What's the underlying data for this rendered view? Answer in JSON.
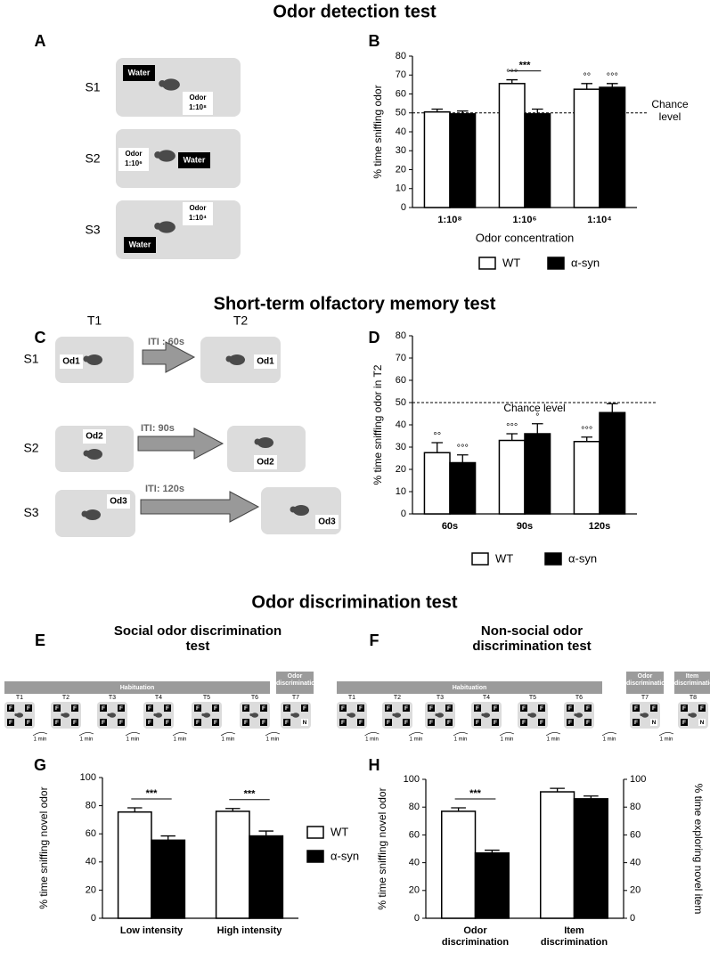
{
  "figure": {
    "sections": [
      "Odor detection test",
      "Short-term olfactory memory test",
      "Odor discrimination test"
    ],
    "panels": [
      "A",
      "B",
      "C",
      "D",
      "E",
      "F",
      "G",
      "H"
    ]
  },
  "diagram_a": {
    "water": "Water",
    "odor": "Odor",
    "sessions": [
      {
        "label": "S1",
        "dilution": "1:10⁸"
      },
      {
        "label": "S2",
        "dilution": "1:10⁶"
      },
      {
        "label": "S3",
        "dilution": "1:10⁴"
      }
    ]
  },
  "diagram_c": {
    "trials": [
      "T1",
      "T2"
    ],
    "sessions": [
      {
        "label": "S1",
        "iti": "ITI : 60s",
        "odor": "Od1"
      },
      {
        "label": "S2",
        "iti": "ITI: 90s",
        "odor": "Od2"
      },
      {
        "label": "S3",
        "iti": "ITI: 120s",
        "odor": "Od3"
      }
    ]
  },
  "diagram_e": {
    "title": "Social odor discrimination test",
    "phases": [
      "Habituation",
      "Odor discrimination"
    ],
    "trials": [
      "T1",
      "T2",
      "T3",
      "T4",
      "T5",
      "T6",
      "T7"
    ],
    "interval": "1 min",
    "familiar": "F",
    "novel": "N"
  },
  "diagram_f": {
    "title": "Non-social odor discrimination test",
    "phases": [
      "Habituation",
      "Odor discrimination",
      "Item discrimination"
    ],
    "trials": [
      "T1",
      "T2",
      "T3",
      "T4",
      "T5",
      "T6",
      "T7",
      "T8"
    ],
    "interval": "1 min",
    "familiar": "F",
    "novel": "N"
  },
  "chart_data": [
    {
      "type": "bar",
      "y_label": "% time sniffing odor",
      "x_label": "Odor concentration",
      "categories": [
        "1:10⁸",
        "1:10⁶",
        "1:10⁴"
      ],
      "edgecolor": "#000000",
      "series": [
        {
          "name": "WT",
          "color": "#ffffff",
          "values": [
            50.5,
            65.5,
            62.5
          ],
          "errors": [
            1.5,
            2,
            3
          ],
          "markers": [
            null,
            "°°°",
            "°°"
          ]
        },
        {
          "name": "α-syn",
          "color": "#000000",
          "values": [
            49.5,
            49.5,
            63.5
          ],
          "errors": [
            1.5,
            2.5,
            2
          ],
          "markers": [
            null,
            null,
            "°°°"
          ]
        }
      ],
      "significance": [
        null,
        "***",
        null
      ],
      "reference_line": {
        "value": 50,
        "label": "Chance level"
      },
      "ylim": [
        0,
        80
      ],
      "yticks": [
        0,
        10,
        20,
        30,
        40,
        50,
        60,
        70,
        80
      ],
      "legend": "bottom"
    },
    {
      "type": "bar",
      "y_label": "% time sniffing odor in T2",
      "categories": [
        "60s",
        "90s",
        "120s"
      ],
      "edgecolor": "#000000",
      "series": [
        {
          "name": "WT",
          "color": "#ffffff",
          "values": [
            27.5,
            33,
            32.5
          ],
          "errors": [
            4.5,
            3,
            2
          ],
          "markers": [
            "°°",
            "°°°",
            "°°°"
          ]
        },
        {
          "name": "α-syn",
          "color": "#000000",
          "values": [
            23,
            36,
            45.5
          ],
          "errors": [
            3.5,
            4.5,
            4
          ],
          "markers": [
            "°°°",
            "°",
            null
          ]
        }
      ],
      "reference_line": {
        "value": 50,
        "label": "Chance level"
      },
      "ylim": [
        0,
        80
      ],
      "yticks": [
        0,
        10,
        20,
        30,
        40,
        50,
        60,
        70,
        80
      ],
      "legend": "bottom"
    },
    {
      "type": "bar",
      "y_label": "% time sniffing novel odor",
      "categories": [
        "Low intensity",
        "High intensity"
      ],
      "edgecolor": "#000000",
      "series": [
        {
          "name": "WT",
          "color": "#ffffff",
          "values": [
            75.5,
            76
          ],
          "errors": [
            3,
            2
          ]
        },
        {
          "name": "α-syn",
          "color": "#000000",
          "values": [
            55.5,
            58.5
          ],
          "errors": [
            3,
            3.5
          ]
        }
      ],
      "significance": [
        "***",
        "***"
      ],
      "ylim": [
        0,
        100
      ],
      "yticks": [
        0,
        20,
        40,
        60,
        80,
        100
      ],
      "legend": "right"
    },
    {
      "type": "bar",
      "y_label": "% time sniffing novel odor",
      "y2_label": "% time exploring novel item",
      "categories": [
        "Odor discrimination",
        "Item discrimination"
      ],
      "edgecolor": "#000000",
      "series": [
        {
          "name": "WT",
          "color": "#ffffff",
          "values": [
            77,
            91
          ],
          "errors": [
            2.5,
            2.5
          ]
        },
        {
          "name": "α-syn",
          "color": "#000000",
          "values": [
            47,
            86
          ],
          "errors": [
            2,
            2
          ]
        }
      ],
      "significance": [
        "***",
        null
      ],
      "ylim": [
        0,
        100
      ],
      "yticks": [
        0,
        20,
        40,
        60,
        80,
        100
      ],
      "y2lim": [
        0,
        100
      ],
      "y2ticks": [
        0,
        20,
        40,
        60,
        80,
        100
      ]
    }
  ]
}
